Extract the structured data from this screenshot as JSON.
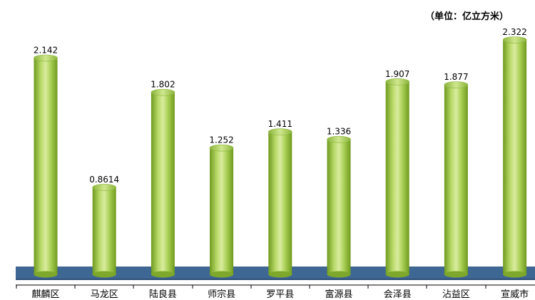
{
  "chart_data": {
    "type": "bar",
    "unit_label": "（单位：亿立方米）",
    "categories": [
      "麒麟区",
      "马龙区",
      "陆良县",
      "师宗县",
      "罗平县",
      "富源县",
      "会泽县",
      "沾益区",
      "宣威市"
    ],
    "values": [
      2.142,
      0.8614,
      1.802,
      1.252,
      1.411,
      1.336,
      1.907,
      1.877,
      2.322
    ],
    "value_labels": [
      "2.142",
      "0.8614",
      "1.802",
      "1.252",
      "1.411",
      "1.336",
      "1.907",
      "1.877",
      "2.322"
    ],
    "ylim": [
      0,
      2.322
    ],
    "grid": false,
    "legend": "none",
    "colors": {
      "bar_light": "#d9ec9e",
      "bar_mid": "#a9cf55",
      "bar_dark": "#6f9a1e",
      "top_cap": "#c5e07b",
      "floor": "#3f6794",
      "floor_edge": "#2d4f76"
    }
  }
}
